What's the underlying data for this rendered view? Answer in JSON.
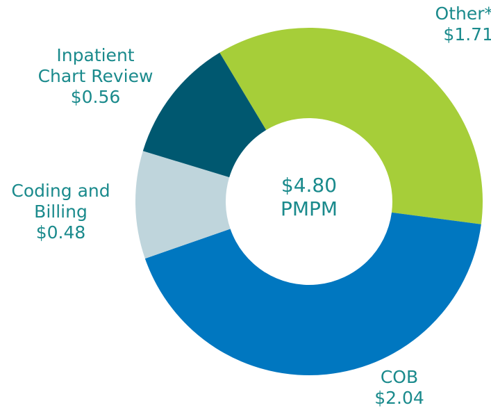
{
  "chart_data": {
    "type": "donut",
    "categories": [
      "Other*",
      "COB",
      "Coding and Billing",
      "Inpatient Chart Review"
    ],
    "values": [
      1.71,
      2.04,
      0.48,
      0.56
    ],
    "value_labels": [
      "$1.71",
      "$2.04",
      "$0.48",
      "$0.56"
    ],
    "colors": [
      "#a6ce39",
      "#0077c0",
      "#bfd5dc",
      "#005870"
    ],
    "center_text": [
      "$4.80",
      "PMPM"
    ]
  }
}
